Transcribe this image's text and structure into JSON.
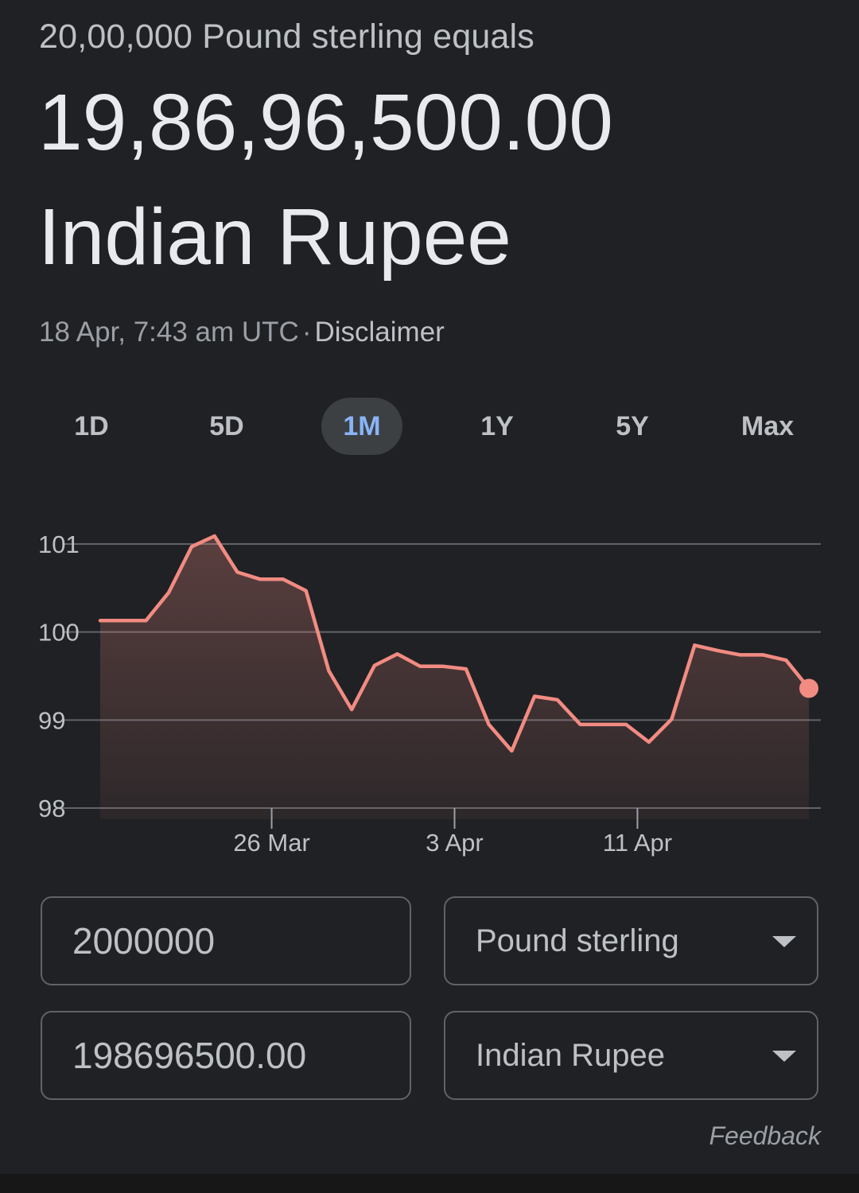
{
  "header": {
    "equals_line": "20,00,000 Pound sterling equals",
    "result_value": "19,86,96,500.00",
    "result_currency": "Indian Rupee",
    "timestamp": "18 Apr, 7:43 am UTC",
    "separator": "·",
    "disclaimer": "Disclaimer"
  },
  "ranges": {
    "items": [
      "1D",
      "5D",
      "1M",
      "1Y",
      "5Y",
      "Max"
    ],
    "active": "1M",
    "active_color": "#8ab4f8"
  },
  "chart_data": {
    "type": "area",
    "line_color": "#f28b82",
    "grid": true,
    "ylim": [
      98,
      101
    ],
    "yticks": [
      101,
      100,
      99,
      98
    ],
    "xticks": [
      {
        "label": "26 Mar",
        "x": 7.5
      },
      {
        "label": "3 Apr",
        "x": 15.5
      },
      {
        "label": "11 Apr",
        "x": 23.5
      }
    ],
    "x": [
      0,
      1,
      2,
      3,
      4,
      5,
      6,
      7,
      8,
      9,
      10,
      11,
      12,
      13,
      14,
      15,
      16,
      17,
      18,
      19,
      20,
      21,
      22,
      23,
      24,
      25,
      26,
      27,
      28,
      29,
      30,
      31
    ],
    "values": [
      100.13,
      100.13,
      100.13,
      100.45,
      100.97,
      101.09,
      100.68,
      100.6,
      100.6,
      100.47,
      99.56,
      99.12,
      99.62,
      99.75,
      99.61,
      99.61,
      99.58,
      98.95,
      98.65,
      99.27,
      99.23,
      98.95,
      98.95,
      98.95,
      98.75,
      99.01,
      99.85,
      99.79,
      99.74,
      99.74,
      99.68,
      99.36
    ]
  },
  "converter": {
    "from_amount": "2000000",
    "from_currency": "Pound sterling",
    "to_amount": "198696500.00",
    "to_currency": "Indian Rupee"
  },
  "feedback_label": "Feedback"
}
